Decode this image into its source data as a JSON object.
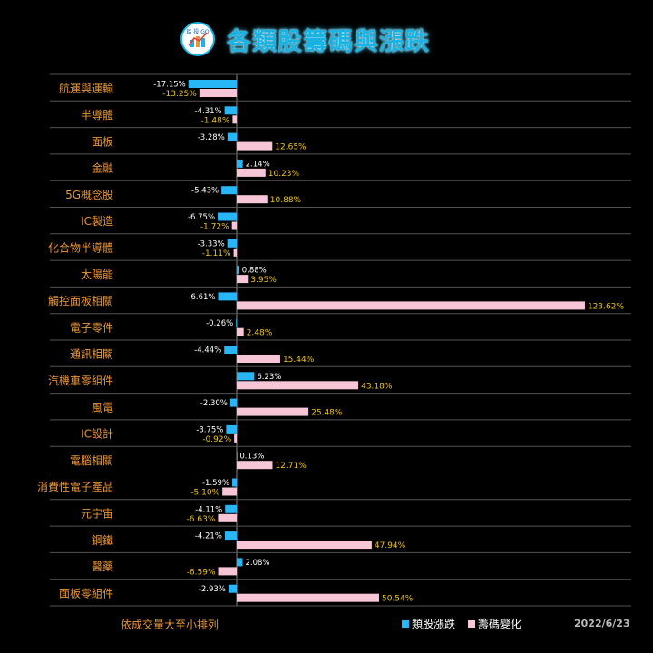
{
  "title": "各類股籌碼與漲跌",
  "logo_text": "銘 投 GO",
  "footer": {
    "sort_note": "依成交量大至小排列",
    "date": "2022/6/23"
  },
  "colors": {
    "price_change": "#29b6f6",
    "chip_change": "#f7c6d6",
    "category_label": "#e8963a",
    "chip_label": "#f0c419",
    "price_label": "#ffffff",
    "divider": "#555555"
  },
  "chart_data": {
    "type": "bar",
    "orientation": "horizontal",
    "title": "各類股籌碼與漲跌",
    "categories": [
      "航運與運輸",
      "半導體",
      "面板",
      "金融",
      "5G概念股",
      "IC製造",
      "化合物半導體",
      "太陽能",
      "觸控面板相關",
      "電子零件",
      "通訊相關",
      "汽機車零組件",
      "風電",
      "IC設計",
      "電腦相關",
      "消費性電子產品",
      "元宇宙",
      "鋼鐵",
      "醫藥",
      "面板零組件"
    ],
    "series": [
      {
        "name": "類股漲跌",
        "values": [
          -17.15,
          -4.31,
          -3.28,
          2.14,
          -5.43,
          -6.75,
          -3.33,
          0.88,
          -6.61,
          -0.26,
          -4.44,
          6.23,
          -2.3,
          -3.75,
          0.13,
          -1.59,
          -4.11,
          -4.21,
          2.08,
          -2.93
        ],
        "labels": [
          "-17.15%",
          "-4.31%",
          "-3.28%",
          "2.14%",
          "-5.43%",
          "-6.75%",
          "-3.33%",
          "0.88%",
          "-6.61%",
          "-0.26%",
          "-4.44%",
          "6.23%",
          "-2.30%",
          "-3.75%",
          "0.13%",
          "-1.59%",
          "-4.11%",
          "-4.21%",
          "2.08%",
          "-2.93%"
        ]
      },
      {
        "name": "籌碼變化",
        "values": [
          -13.25,
          -1.48,
          12.65,
          10.23,
          10.88,
          -1.72,
          -1.11,
          3.95,
          123.62,
          2.48,
          15.44,
          43.18,
          25.48,
          -0.92,
          12.71,
          -5.1,
          -6.63,
          47.94,
          -6.59,
          50.54
        ],
        "labels": [
          "-13.25%",
          "-1.48%",
          "12.65%",
          "10.23%",
          "10.88%",
          "-1.72%",
          "-1.11%",
          "3.95%",
          "123.62%",
          "2.48%",
          "15.44%",
          "43.18%",
          "25.48%",
          "-0.92%",
          "12.71%",
          "-5.10%",
          "-6.63%",
          "47.94%",
          "-6.59%",
          "50.54%"
        ]
      }
    ],
    "legend": "bottom-right",
    "grid": false
  }
}
